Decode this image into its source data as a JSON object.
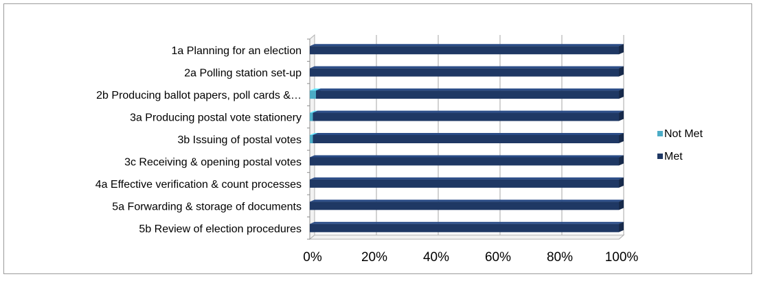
{
  "chart_data": {
    "type": "bar",
    "orientation": "horizontal",
    "stacked": "100%",
    "style": "3d",
    "categories": [
      "1a Planning for an election",
      "2a Polling station set-up",
      "2b Producing ballot papers, poll cards &…",
      "3a Producing postal vote stationery",
      "3b Issuing of postal votes",
      "3c Receiving & opening postal votes",
      "4a Effective verification & count processes",
      "5a Forwarding & storage of documents",
      "5b Review of election procedures"
    ],
    "series": [
      {
        "name": "Not Met",
        "values": [
          0,
          0,
          2,
          1,
          1,
          0,
          0,
          0,
          0
        ],
        "color": "#4bacc6"
      },
      {
        "name": "Met",
        "values": [
          100,
          100,
          98,
          99,
          99,
          100,
          100,
          100,
          100
        ],
        "color": "#1f3864"
      }
    ],
    "x_ticks": [
      "0%",
      "20%",
      "40%",
      "60%",
      "80%",
      "100%"
    ],
    "xlim": [
      0,
      100
    ],
    "grid": true,
    "legend_position": "right"
  }
}
